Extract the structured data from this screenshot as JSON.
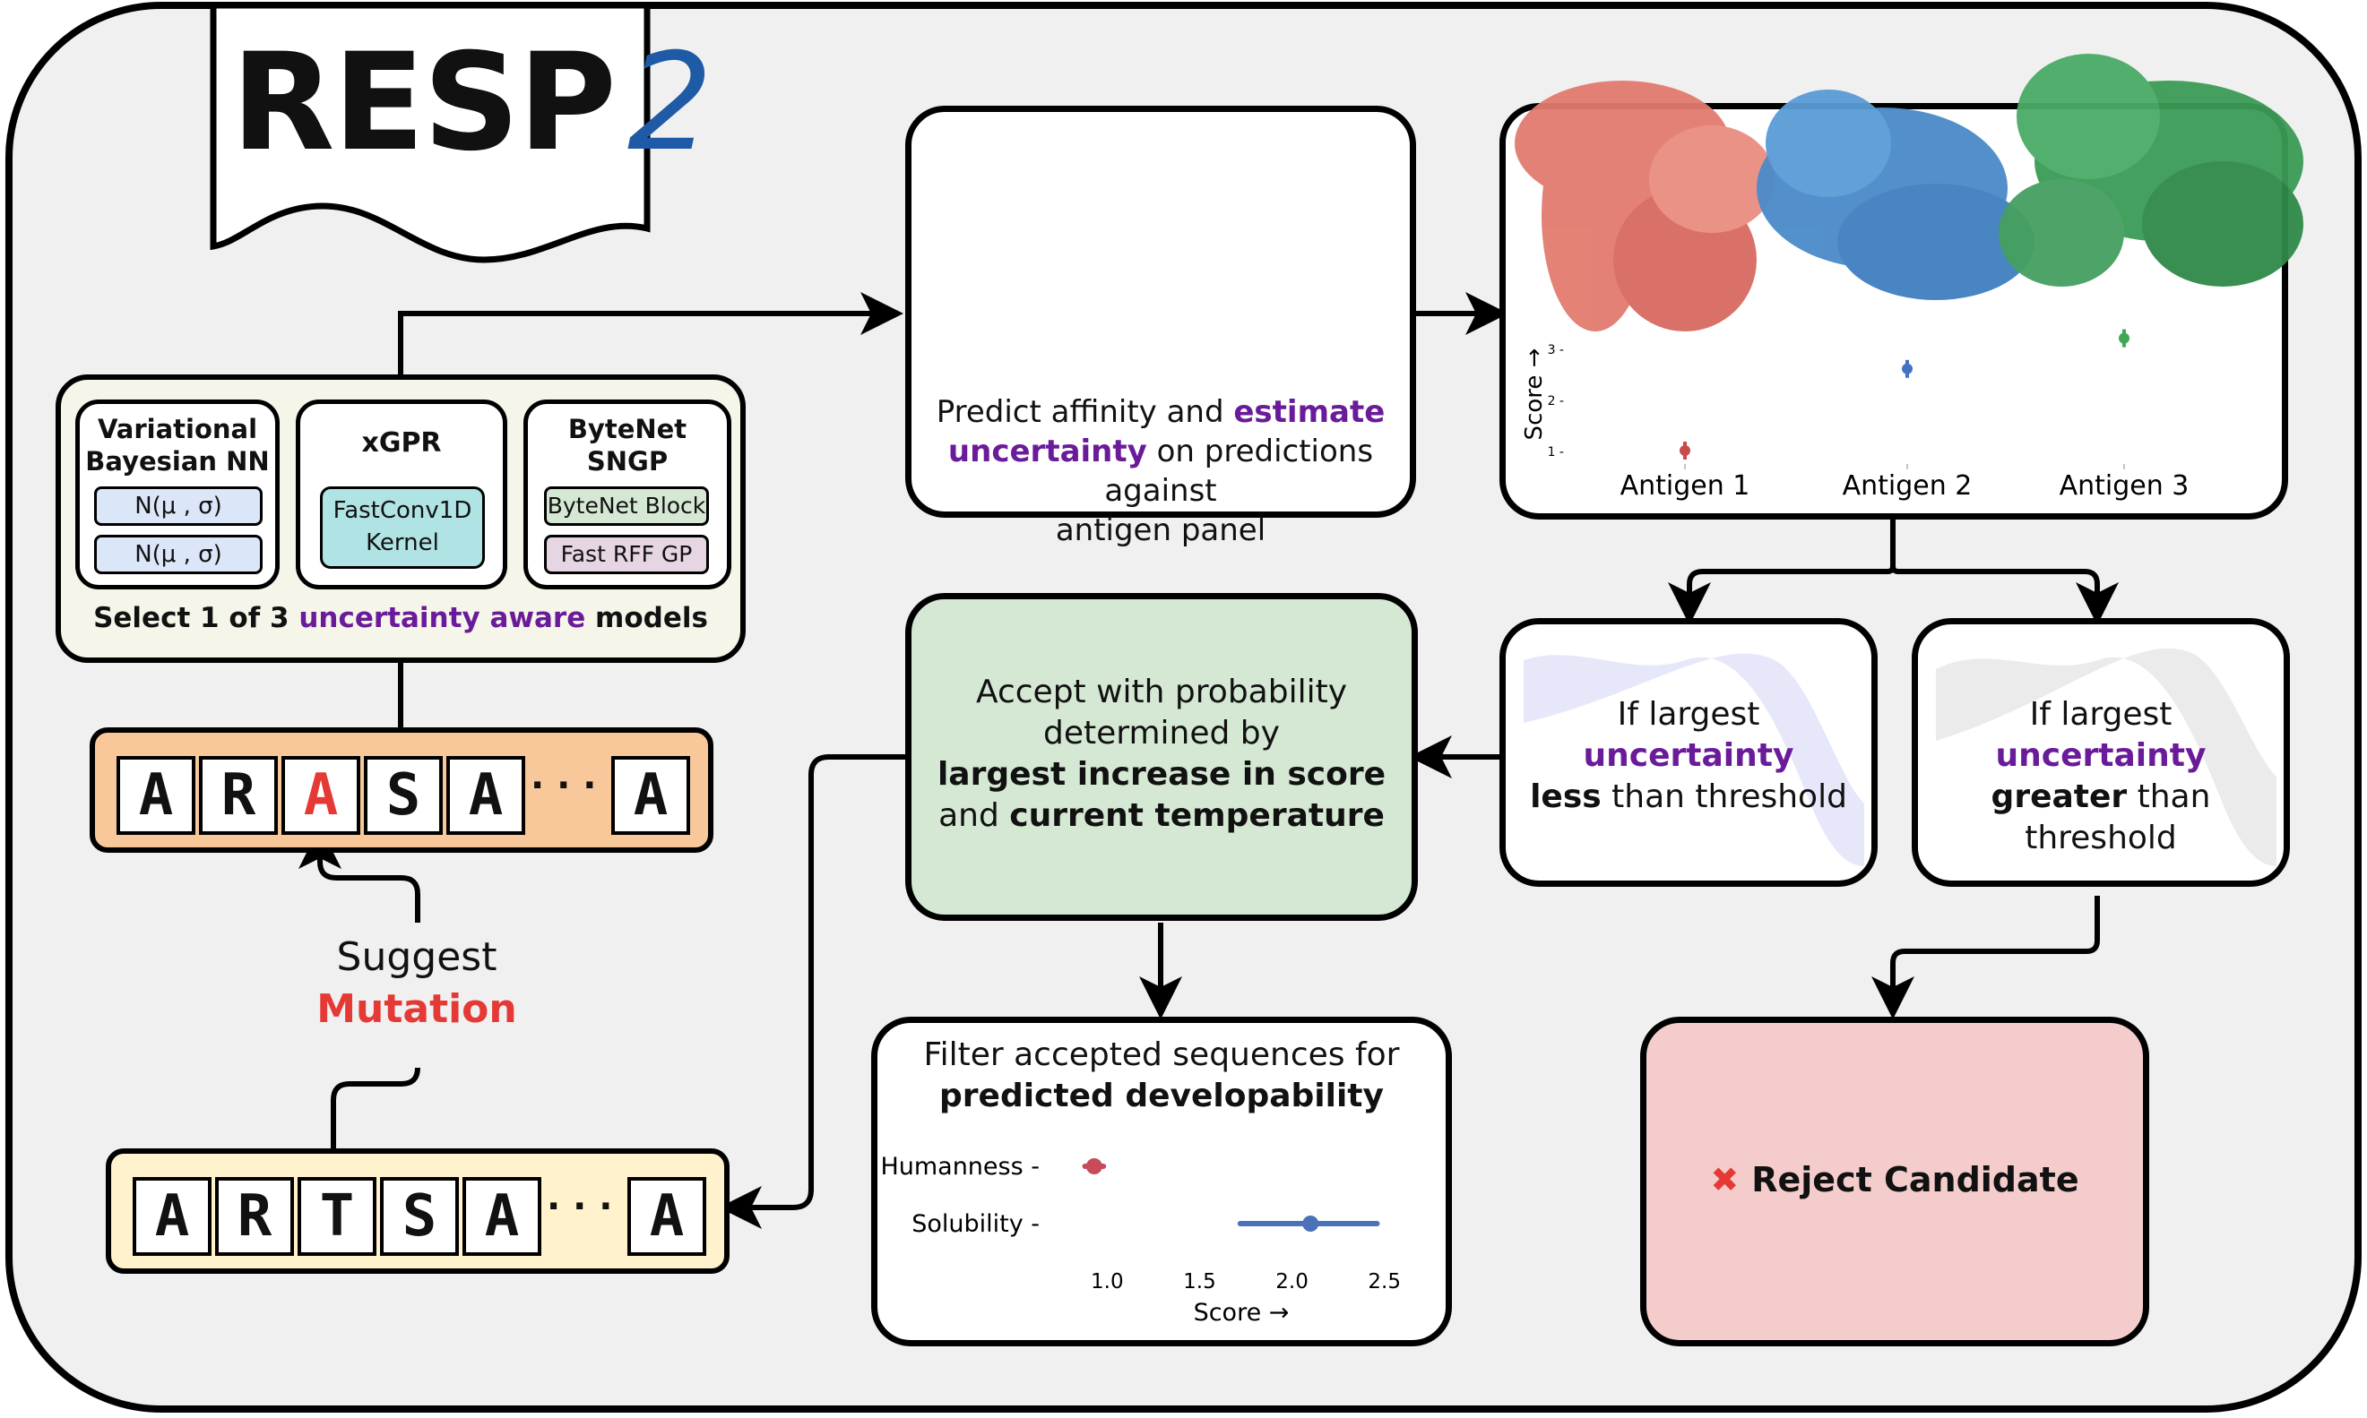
{
  "logo": {
    "text": "RESP",
    "number": "2"
  },
  "models": {
    "caption_prefix": "Select 1 of 3 ",
    "caption_highlight": "uncertainty aware",
    "caption_suffix": " models",
    "vbnn": {
      "title_line1": "Variational",
      "title_line2": "Bayesian NN",
      "pill1": "N(μ , σ)",
      "pill2": "N(μ , σ)"
    },
    "xgpr": {
      "title": "xGPR",
      "kernel_line1": "FastConv1D",
      "kernel_line2": "Kernel"
    },
    "bytenet": {
      "title_line1": "ByteNet",
      "title_line2": "SNGP",
      "pill1": "ByteNet Block",
      "pill2": "Fast RFF GP"
    }
  },
  "sequence_top": [
    "A",
    "R",
    "A",
    "S",
    "A",
    "A"
  ],
  "sequence_bottom": [
    "A",
    "R",
    "T",
    "S",
    "A",
    "A"
  ],
  "ellipsis": "· · ·",
  "suggest": {
    "line1": "Suggest",
    "line2": "Mutation"
  },
  "predict": {
    "line1_prefix": "Predict affinity and ",
    "line1_highlight": "estimate",
    "line2_highlight": "uncertainty",
    "line2_suffix": " on predictions against",
    "line3": "antigen panel"
  },
  "antigens": {
    "labels": [
      "Antigen 1",
      "Antigen 2",
      "Antigen 3"
    ],
    "y_axis_label": "Score →",
    "y_ticks": [
      "3",
      "2",
      "1"
    ]
  },
  "accept": {
    "line1": "Accept with probability",
    "line2": "determined by",
    "line3": "largest increase in score",
    "line4_prefix": "and ",
    "line4_bold": "current temperature"
  },
  "less": {
    "line1": "If largest",
    "line2": "uncertainty",
    "line3_bold": "less",
    "line3_suffix": " than threshold"
  },
  "greater": {
    "line1": "If largest",
    "line2": "uncertainty",
    "line3_bold": "greater",
    "line3_suffix": " than threshold"
  },
  "filter": {
    "line1": "Filter accepted sequences for",
    "line2": "predicted developability"
  },
  "reject": {
    "label": "Reject Candidate"
  },
  "chart_data": [
    {
      "type": "scatter",
      "title": "",
      "categories": [
        "Antigen 1",
        "Antigen 2",
        "Antigen 3"
      ],
      "values": [
        1.0,
        2.6,
        3.2
      ],
      "ylabel": "Score →",
      "yticks": [
        1,
        2,
        3
      ],
      "colors": [
        "#c84b4b",
        "#4472c4",
        "#3fa856"
      ]
    },
    {
      "type": "scatter",
      "title": "",
      "categories": [
        "Humanness",
        "Solubility"
      ],
      "values": [
        0.93,
        2.1
      ],
      "errors": [
        [
          0.88,
          0.98
        ],
        [
          1.72,
          2.46
        ]
      ],
      "xlabel": "Score →",
      "xticks": [
        "1.0",
        "1.5",
        "2.0",
        "2.5"
      ],
      "xlim": [
        0.95,
        2.55
      ],
      "colors": [
        "#c84b5a",
        "#4a72b8"
      ]
    }
  ],
  "colors": {
    "purple": "#6a1b9a",
    "red_accent": "#e53935",
    "accept_fill": "#d5e8d4",
    "reject_fill": "#f4cccc",
    "seq_top_fill": "#f8c89b",
    "seq_bottom_fill": "#fff2cc",
    "model_bg": "#f6f5ea"
  }
}
